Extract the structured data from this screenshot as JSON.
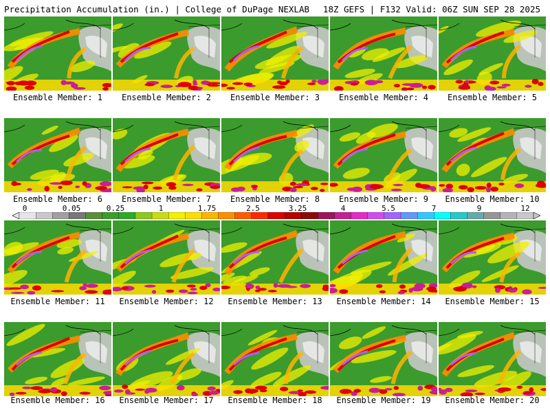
{
  "header": {
    "left": "Precipitation Accumulation (in.) | College of DuPage NEXLAB",
    "right": "18Z GEFS | F132 Valid: 06Z SUN SEP 28 2025"
  },
  "members": [
    "Ensemble Member: 1",
    "Ensemble Member: 2",
    "Ensemble Member: 3",
    "Ensemble Member: 4",
    "Ensemble Member: 5",
    "Ensemble Member: 6",
    "Ensemble Member: 7",
    "Ensemble Member: 8",
    "Ensemble Member: 9",
    "Ensemble Member: 10",
    "Ensemble Member: 11",
    "Ensemble Member: 12",
    "Ensemble Member: 13",
    "Ensemble Member: 14",
    "Ensemble Member: 15",
    "Ensemble Member: 16",
    "Ensemble Member: 17",
    "Ensemble Member: 18",
    "Ensemble Member: 19",
    "Ensemble Member: 20"
  ],
  "colorbar": {
    "labels": [
      "0",
      "0.05",
      "0.25",
      "1",
      "1.75",
      "2.5",
      "3.25",
      "4",
      "5.5",
      "7",
      "9",
      "12"
    ],
    "colors": [
      "#e6e6e6",
      "#c8c8c8",
      "#a0a0a0",
      "#787878",
      "#5a8c3c",
      "#3c9b2d",
      "#2daa28",
      "#8cc81e",
      "#c8dc14",
      "#f0f000",
      "#ffdc00",
      "#ffb400",
      "#ff8c00",
      "#ff5a00",
      "#ff2800",
      "#dc0000",
      "#b40000",
      "#8c0a0a",
      "#a0145a",
      "#c81e96",
      "#e628c8",
      "#d24bf0",
      "#a064ff",
      "#6496ff",
      "#32c8ff",
      "#00ffff",
      "#28c8c8",
      "#64aaaa",
      "#969696",
      "#b4b4b4",
      "#c8c8c8"
    ]
  }
}
